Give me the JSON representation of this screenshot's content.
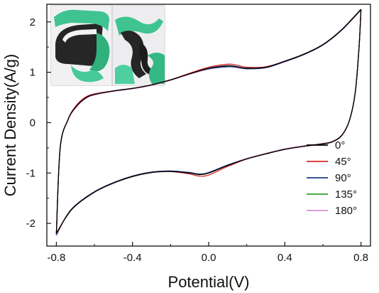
{
  "chart_data": {
    "type": "line",
    "xlabel": "Potential(V)",
    "ylabel": "Current Density(A/g)",
    "xlim": [
      -0.85,
      0.85
    ],
    "ylim": [
      -2.45,
      2.35
    ],
    "xticks": [
      "-0.8",
      "-0.4",
      "0.0",
      "0.4",
      "0.8"
    ],
    "xtick_values": [
      -0.8,
      -0.4,
      0.0,
      0.4,
      0.8
    ],
    "yticks": [
      "-2",
      "-1",
      "0",
      "1",
      "2"
    ],
    "ytick_values": [
      -2,
      -1,
      0,
      1,
      2
    ],
    "legend_position": "bottom-right",
    "inset": "photo of bent/twisted flexible black fabric electrode held by green-gloved fingers",
    "series": [
      {
        "name": "0°",
        "color": "#000000",
        "dy": 0.0,
        "upper": [
          [
            -0.8,
            -2.2
          ],
          [
            -0.78,
            -0.5
          ],
          [
            -0.74,
            0.05
          ],
          [
            -0.7,
            0.3
          ],
          [
            -0.65,
            0.48
          ],
          [
            -0.6,
            0.56
          ],
          [
            -0.5,
            0.63
          ],
          [
            -0.4,
            0.68
          ],
          [
            -0.3,
            0.75
          ],
          [
            -0.2,
            0.85
          ],
          [
            -0.1,
            0.97
          ],
          [
            0.0,
            1.08
          ],
          [
            0.1,
            1.13
          ],
          [
            0.15,
            1.11
          ],
          [
            0.2,
            1.08
          ],
          [
            0.3,
            1.1
          ],
          [
            0.4,
            1.22
          ],
          [
            0.5,
            1.36
          ],
          [
            0.6,
            1.55
          ],
          [
            0.7,
            1.85
          ],
          [
            0.8,
            2.25
          ]
        ],
        "lower": [
          [
            0.8,
            2.25
          ],
          [
            0.79,
            1.5
          ],
          [
            0.77,
            0.6
          ],
          [
            0.74,
            0.05
          ],
          [
            0.7,
            -0.25
          ],
          [
            0.65,
            -0.38
          ],
          [
            0.6,
            -0.42
          ],
          [
            0.5,
            -0.47
          ],
          [
            0.4,
            -0.53
          ],
          [
            0.3,
            -0.62
          ],
          [
            0.2,
            -0.72
          ],
          [
            0.1,
            -0.85
          ],
          [
            0.0,
            -1.0
          ],
          [
            -0.05,
            -1.03
          ],
          [
            -0.1,
            -1.0
          ],
          [
            -0.2,
            -0.97
          ],
          [
            -0.3,
            -0.99
          ],
          [
            -0.4,
            -1.07
          ],
          [
            -0.5,
            -1.2
          ],
          [
            -0.6,
            -1.38
          ],
          [
            -0.7,
            -1.65
          ],
          [
            -0.75,
            -1.88
          ],
          [
            -0.8,
            -2.2
          ]
        ]
      },
      {
        "name": "45°",
        "color": "#d62728",
        "dy": 0.02,
        "upper": [
          [
            -0.8,
            -2.2
          ],
          [
            -0.78,
            -0.5
          ],
          [
            -0.74,
            0.05
          ],
          [
            -0.7,
            0.32
          ],
          [
            -0.65,
            0.5
          ],
          [
            -0.6,
            0.57
          ],
          [
            -0.5,
            0.63
          ],
          [
            -0.4,
            0.68
          ],
          [
            -0.3,
            0.75
          ],
          [
            -0.2,
            0.85
          ],
          [
            -0.1,
            0.98
          ],
          [
            0.0,
            1.1
          ],
          [
            0.1,
            1.16
          ],
          [
            0.15,
            1.14
          ],
          [
            0.2,
            1.1
          ],
          [
            0.3,
            1.11
          ],
          [
            0.4,
            1.22
          ],
          [
            0.5,
            1.36
          ],
          [
            0.6,
            1.55
          ],
          [
            0.7,
            1.85
          ],
          [
            0.8,
            2.25
          ]
        ],
        "lower": [
          [
            0.8,
            2.25
          ],
          [
            0.79,
            1.5
          ],
          [
            0.77,
            0.6
          ],
          [
            0.74,
            0.05
          ],
          [
            0.7,
            -0.25
          ],
          [
            0.65,
            -0.38
          ],
          [
            0.6,
            -0.42
          ],
          [
            0.5,
            -0.47
          ],
          [
            0.4,
            -0.53
          ],
          [
            0.3,
            -0.62
          ],
          [
            0.2,
            -0.72
          ],
          [
            0.1,
            -0.87
          ],
          [
            0.0,
            -1.04
          ],
          [
            -0.05,
            -1.06
          ],
          [
            -0.1,
            -1.02
          ],
          [
            -0.2,
            -0.97
          ],
          [
            -0.3,
            -0.99
          ],
          [
            -0.4,
            -1.07
          ],
          [
            -0.5,
            -1.2
          ],
          [
            -0.6,
            -1.38
          ],
          [
            -0.7,
            -1.65
          ],
          [
            -0.75,
            -1.88
          ],
          [
            -0.8,
            -2.2
          ]
        ]
      },
      {
        "name": "90°",
        "color": "#1f3d8a",
        "dy": -0.01,
        "upper": [
          [
            -0.8,
            -2.22
          ],
          [
            -0.78,
            -0.5
          ],
          [
            -0.74,
            0.05
          ],
          [
            -0.7,
            0.3
          ],
          [
            -0.65,
            0.48
          ],
          [
            -0.6,
            0.56
          ],
          [
            -0.5,
            0.63
          ],
          [
            -0.4,
            0.68
          ],
          [
            -0.3,
            0.75
          ],
          [
            -0.2,
            0.85
          ],
          [
            -0.1,
            0.97
          ],
          [
            0.0,
            1.07
          ],
          [
            0.1,
            1.11
          ],
          [
            0.15,
            1.1
          ],
          [
            0.2,
            1.07
          ],
          [
            0.3,
            1.09
          ],
          [
            0.4,
            1.21
          ],
          [
            0.5,
            1.35
          ],
          [
            0.6,
            1.54
          ],
          [
            0.7,
            1.84
          ],
          [
            0.8,
            2.24
          ]
        ],
        "lower": [
          [
            0.8,
            2.24
          ],
          [
            0.79,
            1.5
          ],
          [
            0.77,
            0.6
          ],
          [
            0.74,
            0.05
          ],
          [
            0.7,
            -0.25
          ],
          [
            0.65,
            -0.38
          ],
          [
            0.6,
            -0.42
          ],
          [
            0.5,
            -0.47
          ],
          [
            0.4,
            -0.53
          ],
          [
            0.3,
            -0.62
          ],
          [
            0.2,
            -0.72
          ],
          [
            0.1,
            -0.84
          ],
          [
            0.0,
            -0.99
          ],
          [
            -0.05,
            -1.02
          ],
          [
            -0.1,
            -0.99
          ],
          [
            -0.2,
            -0.96
          ],
          [
            -0.3,
            -0.98
          ],
          [
            -0.4,
            -1.06
          ],
          [
            -0.5,
            -1.19
          ],
          [
            -0.6,
            -1.37
          ],
          [
            -0.7,
            -1.64
          ],
          [
            -0.75,
            -1.87
          ],
          [
            -0.8,
            -2.22
          ]
        ]
      },
      {
        "name": "135°",
        "color": "#2ca02c",
        "dy": 0.01,
        "upper": [
          [
            -0.8,
            -2.21
          ],
          [
            -0.78,
            -0.5
          ],
          [
            -0.74,
            0.05
          ],
          [
            -0.7,
            0.31
          ],
          [
            -0.65,
            0.49
          ],
          [
            -0.6,
            0.56
          ],
          [
            -0.5,
            0.63
          ],
          [
            -0.4,
            0.68
          ],
          [
            -0.3,
            0.75
          ],
          [
            -0.2,
            0.85
          ],
          [
            -0.1,
            0.97
          ],
          [
            0.0,
            1.08
          ],
          [
            0.1,
            1.12
          ],
          [
            0.15,
            1.1
          ],
          [
            0.2,
            1.08
          ],
          [
            0.3,
            1.1
          ],
          [
            0.4,
            1.22
          ],
          [
            0.5,
            1.36
          ],
          [
            0.6,
            1.55
          ],
          [
            0.7,
            1.85
          ],
          [
            0.8,
            2.25
          ]
        ],
        "lower": [
          [
            0.8,
            2.25
          ],
          [
            0.79,
            1.5
          ],
          [
            0.77,
            0.6
          ],
          [
            0.74,
            0.05
          ],
          [
            0.7,
            -0.25
          ],
          [
            0.65,
            -0.38
          ],
          [
            0.6,
            -0.42
          ],
          [
            0.5,
            -0.47
          ],
          [
            0.4,
            -0.53
          ],
          [
            0.3,
            -0.62
          ],
          [
            0.2,
            -0.72
          ],
          [
            0.1,
            -0.85
          ],
          [
            0.0,
            -1.0
          ],
          [
            -0.05,
            -1.03
          ],
          [
            -0.1,
            -1.0
          ],
          [
            -0.2,
            -0.97
          ],
          [
            -0.3,
            -0.99
          ],
          [
            -0.4,
            -1.07
          ],
          [
            -0.5,
            -1.2
          ],
          [
            -0.6,
            -1.38
          ],
          [
            -0.7,
            -1.65
          ],
          [
            -0.75,
            -1.88
          ],
          [
            -0.8,
            -2.21
          ]
        ]
      },
      {
        "name": "180°",
        "color": "#d68fd6",
        "dy": -0.02,
        "upper": [
          [
            -0.8,
            -2.25
          ],
          [
            -0.78,
            -0.52
          ],
          [
            -0.74,
            0.04
          ],
          [
            -0.7,
            0.29
          ],
          [
            -0.65,
            0.47
          ],
          [
            -0.6,
            0.55
          ],
          [
            -0.5,
            0.62
          ],
          [
            -0.4,
            0.67
          ],
          [
            -0.3,
            0.74
          ],
          [
            -0.2,
            0.84
          ],
          [
            -0.1,
            0.96
          ],
          [
            0.0,
            1.06
          ],
          [
            0.1,
            1.11
          ],
          [
            0.15,
            1.09
          ],
          [
            0.2,
            1.07
          ],
          [
            0.3,
            1.09
          ],
          [
            0.4,
            1.21
          ],
          [
            0.5,
            1.35
          ],
          [
            0.6,
            1.54
          ],
          [
            0.7,
            1.84
          ],
          [
            0.8,
            2.24
          ]
        ],
        "lower": [
          [
            0.8,
            2.24
          ],
          [
            0.79,
            1.5
          ],
          [
            0.77,
            0.6
          ],
          [
            0.74,
            0.05
          ],
          [
            0.7,
            -0.24
          ],
          [
            0.65,
            -0.37
          ],
          [
            0.6,
            -0.41
          ],
          [
            0.5,
            -0.46
          ],
          [
            0.4,
            -0.52
          ],
          [
            0.3,
            -0.61
          ],
          [
            0.2,
            -0.71
          ],
          [
            0.1,
            -0.84
          ],
          [
            0.0,
            -0.99
          ],
          [
            -0.05,
            -1.02
          ],
          [
            -0.1,
            -0.99
          ],
          [
            -0.2,
            -0.96
          ],
          [
            -0.3,
            -0.98
          ],
          [
            -0.4,
            -1.06
          ],
          [
            -0.5,
            -1.19
          ],
          [
            -0.6,
            -1.37
          ],
          [
            -0.7,
            -1.64
          ],
          [
            -0.75,
            -1.87
          ],
          [
            -0.8,
            -2.25
          ]
        ]
      }
    ]
  }
}
